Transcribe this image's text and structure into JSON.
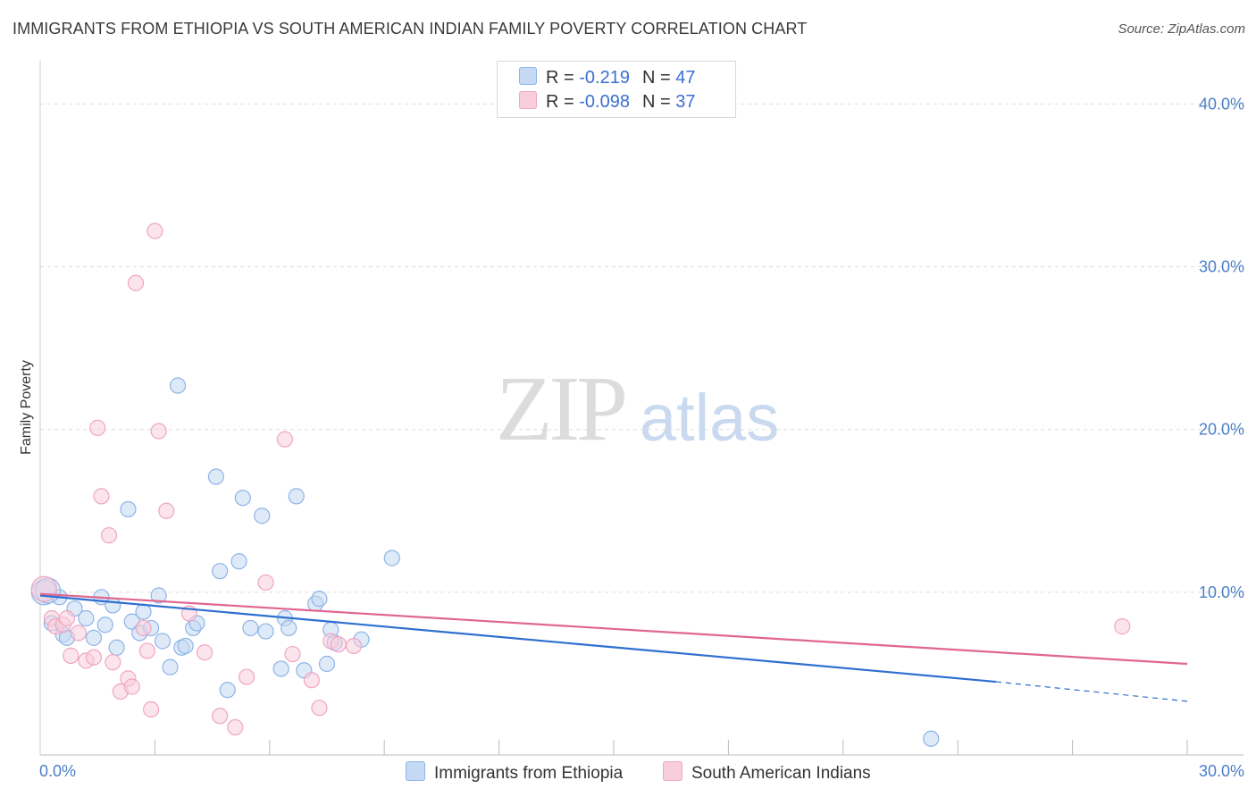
{
  "chart_data": {
    "type": "scatter",
    "title": "IMMIGRANTS FROM ETHIOPIA VS SOUTH AMERICAN INDIAN FAMILY POVERTY CORRELATION CHART",
    "source": "Source: ZipAtlas.com",
    "ylabel": "Family Poverty",
    "xlabel": "",
    "xlim": [
      0,
      30
    ],
    "ylim": [
      0,
      42
    ],
    "x_ticks": [
      "0.0%",
      "30.0%"
    ],
    "y_ticks": [
      {
        "value": 10,
        "label": "10.0%"
      },
      {
        "value": 20,
        "label": "20.0%"
      },
      {
        "value": 30,
        "label": "30.0%"
      },
      {
        "value": 40,
        "label": "40.0%"
      }
    ],
    "watermark": {
      "part1": "ZIP",
      "part2": "atlas"
    },
    "legend": {
      "rows": [
        {
          "r_label": "R =",
          "r_value": "-0.219",
          "n_label": "N =",
          "n_value": "47"
        },
        {
          "r_label": "R =",
          "r_value": "-0.098",
          "n_label": "N =",
          "n_value": "37"
        }
      ]
    },
    "series": [
      {
        "name": "Immigrants from Ethiopia",
        "color": "#8db4e8",
        "fill": "#c5d9f3",
        "line_color": "#2f6fd0",
        "trend": {
          "x0": 0,
          "y0": 9.8,
          "x1": 25,
          "y1": 4.5,
          "dash_to_x": 30,
          "dash_to_y": 3.3
        },
        "points": [
          [
            0.1,
            10.0
          ],
          [
            0.3,
            8.1
          ],
          [
            0.5,
            9.7
          ],
          [
            0.6,
            7.4
          ],
          [
            0.7,
            7.2
          ],
          [
            0.9,
            9.0
          ],
          [
            1.2,
            8.4
          ],
          [
            1.4,
            7.2
          ],
          [
            1.6,
            9.7
          ],
          [
            1.7,
            8.0
          ],
          [
            1.9,
            9.2
          ],
          [
            2.0,
            6.6
          ],
          [
            2.3,
            15.1
          ],
          [
            2.4,
            8.2
          ],
          [
            2.6,
            7.5
          ],
          [
            2.7,
            8.8
          ],
          [
            2.9,
            7.8
          ],
          [
            3.1,
            9.8
          ],
          [
            3.2,
            7.0
          ],
          [
            3.4,
            5.4
          ],
          [
            3.6,
            22.7
          ],
          [
            3.7,
            6.6
          ],
          [
            3.8,
            6.7
          ],
          [
            4.0,
            7.8
          ],
          [
            4.1,
            8.1
          ],
          [
            4.6,
            17.1
          ],
          [
            4.7,
            11.3
          ],
          [
            4.9,
            4.0
          ],
          [
            5.2,
            11.9
          ],
          [
            5.3,
            15.8
          ],
          [
            5.5,
            7.8
          ],
          [
            5.8,
            14.7
          ],
          [
            5.9,
            7.6
          ],
          [
            6.3,
            5.3
          ],
          [
            6.4,
            8.4
          ],
          [
            6.5,
            7.8
          ],
          [
            6.7,
            15.9
          ],
          [
            6.9,
            5.2
          ],
          [
            7.2,
            9.3
          ],
          [
            7.3,
            9.6
          ],
          [
            7.5,
            5.6
          ],
          [
            7.6,
            7.7
          ],
          [
            7.7,
            6.9
          ],
          [
            8.4,
            7.1
          ],
          [
            9.2,
            12.1
          ],
          [
            23.3,
            1.0
          ],
          [
            0.2,
            10.1
          ]
        ]
      },
      {
        "name": "South American Indians",
        "color": "#f0a6c0",
        "fill": "#f8cddc",
        "line_color": "#e06690",
        "trend": {
          "x0": 0,
          "y0": 9.9,
          "x1": 30,
          "y1": 5.6
        },
        "points": [
          [
            0.1,
            10.2
          ],
          [
            0.3,
            8.4
          ],
          [
            0.4,
            7.9
          ],
          [
            0.6,
            8.0
          ],
          [
            0.7,
            8.4
          ],
          [
            0.8,
            6.1
          ],
          [
            1.0,
            7.5
          ],
          [
            1.2,
            5.8
          ],
          [
            1.4,
            6.0
          ],
          [
            1.5,
            20.1
          ],
          [
            1.6,
            15.9
          ],
          [
            1.8,
            13.5
          ],
          [
            1.9,
            5.7
          ],
          [
            2.1,
            3.9
          ],
          [
            2.3,
            4.7
          ],
          [
            2.4,
            4.2
          ],
          [
            2.5,
            29.0
          ],
          [
            2.7,
            7.8
          ],
          [
            2.8,
            6.4
          ],
          [
            2.9,
            2.8
          ],
          [
            3.0,
            32.2
          ],
          [
            3.1,
            19.9
          ],
          [
            3.3,
            15.0
          ],
          [
            3.9,
            8.7
          ],
          [
            4.3,
            6.3
          ],
          [
            4.7,
            2.4
          ],
          [
            5.1,
            1.7
          ],
          [
            5.4,
            4.8
          ],
          [
            5.9,
            10.6
          ],
          [
            6.4,
            19.4
          ],
          [
            6.6,
            6.2
          ],
          [
            7.1,
            4.6
          ],
          [
            7.3,
            2.9
          ],
          [
            7.6,
            7.0
          ],
          [
            7.8,
            6.8
          ],
          [
            8.2,
            6.7
          ],
          [
            28.3,
            7.9
          ]
        ]
      }
    ]
  }
}
